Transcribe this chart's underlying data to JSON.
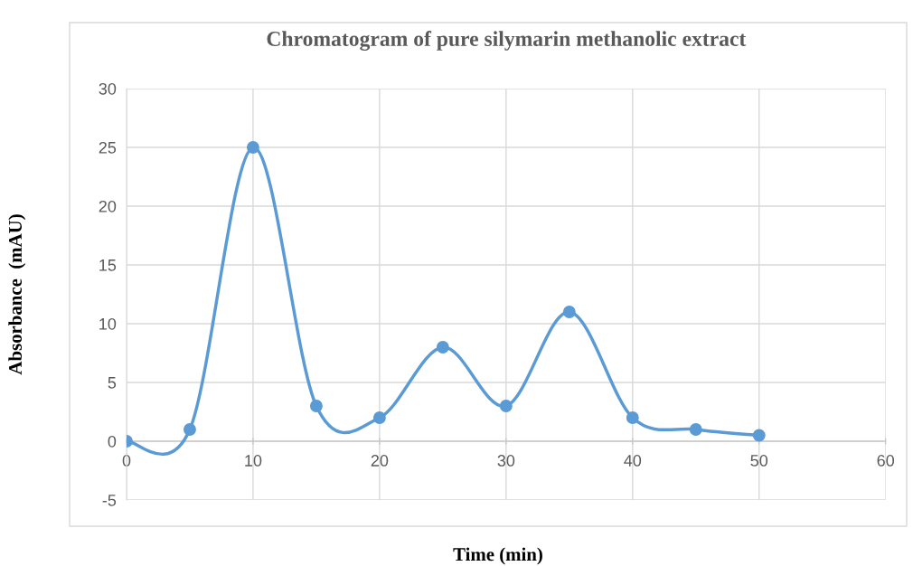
{
  "chart_data": {
    "type": "line",
    "title": "Chromatogram of pure silymarin methanolic extract",
    "xlabel": "Time (min)",
    "ylabel": "Absorbance  (mAU)",
    "x": [
      0,
      5,
      10,
      15,
      20,
      25,
      30,
      35,
      40,
      45,
      50
    ],
    "series": [
      {
        "color": "#5b9bd5",
        "values": [
          0,
          1,
          25,
          3,
          2,
          8,
          3,
          11,
          2,
          1,
          0.5
        ]
      }
    ],
    "xlim": [
      0,
      60
    ],
    "xticks": [
      0,
      10,
      20,
      30,
      40,
      50,
      60
    ],
    "ylim": [
      -5,
      30
    ],
    "yticks": [
      -5,
      0,
      5,
      10,
      15,
      20,
      25,
      30
    ],
    "grid": true,
    "marker": "circle",
    "line_style": "solid",
    "legend": false
  }
}
